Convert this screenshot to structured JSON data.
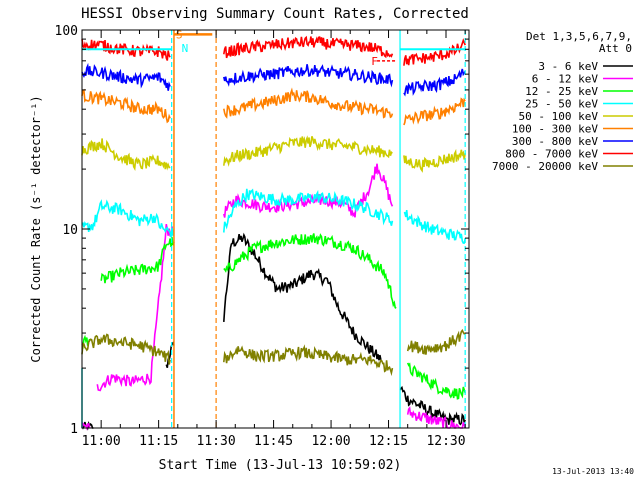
{
  "chart_data": {
    "type": "line",
    "title": "HESSI Observing Summary Count Rates, Corrected",
    "xlabel": "Start Time (13-Jul-13 10:59:02)",
    "ylabel": "Corrected Count Rate (s⁻¹ detector⁻¹)",
    "yscale": "log",
    "ylim": [
      1,
      100
    ],
    "xlim_minutes": [
      -5,
      96
    ],
    "x_ticks": [
      {
        "m": 0,
        "label": "11:00"
      },
      {
        "m": 15,
        "label": "11:15"
      },
      {
        "m": 30,
        "label": "11:30"
      },
      {
        "m": 45,
        "label": "11:45"
      },
      {
        "m": 60,
        "label": "12:00"
      },
      {
        "m": 75,
        "label": "12:15"
      },
      {
        "m": 90,
        "label": "12:30"
      }
    ],
    "y_ticks": [
      {
        "v": 1,
        "label": "1"
      },
      {
        "v": 10,
        "label": "10"
      },
      {
        "v": 100,
        "label": "100"
      }
    ],
    "legend": {
      "position": "right",
      "header": [
        "Det 1,3,5,6,7,9,",
        "Att 0"
      ]
    },
    "series": [
      {
        "name": "3 - 6 keV",
        "color": "#000000",
        "segments": [
          [
            [
              -5,
              1.0
            ],
            [
              -2,
              1.0
            ]
          ],
          [
            [
              17,
              2.0
            ],
            [
              18,
              2.4
            ],
            [
              19,
              2.6
            ]
          ],
          [
            [
              32,
              3.6
            ],
            [
              34,
              8.5
            ],
            [
              37,
              9.0
            ],
            [
              40,
              7.5
            ],
            [
              43,
              6.0
            ],
            [
              46,
              5.0
            ],
            [
              50,
              5.2
            ],
            [
              55,
              6.0
            ],
            [
              59,
              5.5
            ],
            [
              62,
              4.0
            ],
            [
              66,
              3.0
            ],
            [
              70,
              2.5
            ],
            [
              73,
              2.2
            ]
          ],
          [
            [
              78,
              1.6
            ],
            [
              80,
              1.4
            ],
            [
              83,
              1.3
            ],
            [
              86,
              1.2
            ],
            [
              90,
              1.1
            ],
            [
              95,
              1.1
            ]
          ]
        ]
      },
      {
        "name": "6 - 12 keV",
        "color": "#ff00ff",
        "segments": [
          [
            [
              -5,
              1.0
            ],
            [
              -3,
              1.0
            ]
          ],
          [
            [
              -1,
              1.6
            ],
            [
              3,
              1.8
            ],
            [
              8,
              1.7
            ],
            [
              13,
              1.8
            ],
            [
              17,
              10.0
            ],
            [
              19,
              9.5
            ]
          ],
          [
            [
              32,
              12.0
            ],
            [
              35,
              14.0
            ],
            [
              39,
              13.5
            ],
            [
              42,
              13.0
            ],
            [
              46,
              13.0
            ],
            [
              52,
              13.5
            ],
            [
              58,
              14.0
            ],
            [
              63,
              13.5
            ],
            [
              66,
              12.0
            ],
            [
              70,
              16.0
            ],
            [
              72,
              21.0
            ],
            [
              74,
              17.0
            ],
            [
              76,
              13.0
            ]
          ],
          [
            [
              80,
              1.2
            ],
            [
              86,
              1.1
            ],
            [
              90,
              1.05
            ],
            [
              95,
              1.0
            ]
          ]
        ]
      },
      {
        "name": "12 - 25 keV",
        "color": "#00ff00",
        "segments": [
          [
            [
              -5,
              2.7
            ],
            [
              -3,
              2.8
            ]
          ],
          [
            [
              0,
              5.5
            ],
            [
              5,
              6.0
            ],
            [
              10,
              6.2
            ],
            [
              15,
              6.5
            ],
            [
              17,
              8.5
            ],
            [
              19,
              8.6
            ]
          ],
          [
            [
              32,
              6.0
            ],
            [
              36,
              7.0
            ],
            [
              40,
              8.0
            ],
            [
              45,
              8.5
            ],
            [
              50,
              8.8
            ],
            [
              56,
              9.0
            ],
            [
              62,
              8.5
            ],
            [
              66,
              8.0
            ],
            [
              70,
              7.0
            ],
            [
              74,
              6.0
            ],
            [
              77,
              4.0
            ]
          ],
          [
            [
              80,
              2.0
            ],
            [
              84,
              1.8
            ],
            [
              88,
              1.6
            ],
            [
              92,
              1.5
            ],
            [
              95,
              1.5
            ]
          ]
        ]
      },
      {
        "name": "25 - 50 keV",
        "color": "#00ffff",
        "segments": [
          [
            [
              -5,
              10.0
            ],
            [
              -2,
              10.5
            ],
            [
              0,
              13.0
            ],
            [
              5,
              12.5
            ],
            [
              10,
              11.0
            ],
            [
              14,
              11.5
            ],
            [
              16,
              10.0
            ],
            [
              19,
              9.5
            ]
          ],
          [
            [
              32,
              10.0
            ],
            [
              35,
              13.0
            ],
            [
              38,
              15.0
            ],
            [
              42,
              14.5
            ],
            [
              46,
              14.0
            ],
            [
              50,
              14.0
            ],
            [
              56,
              14.5
            ],
            [
              62,
              14.0
            ],
            [
              68,
              13.0
            ],
            [
              72,
              12.0
            ],
            [
              76,
              11.0
            ]
          ],
          [
            [
              79,
              12.0
            ],
            [
              82,
              11.0
            ],
            [
              86,
              10.0
            ],
            [
              90,
              9.5
            ],
            [
              95,
              9.0
            ]
          ]
        ]
      },
      {
        "name": "50 - 100 keV",
        "color": "#cccc00",
        "segments": [
          [
            [
              -5,
              25.0
            ],
            [
              0,
              27.0
            ],
            [
              5,
              23.0
            ],
            [
              10,
              21.0
            ],
            [
              15,
              22.0
            ],
            [
              18,
              20.5
            ]
          ],
          [
            [
              32,
              22.0
            ],
            [
              36,
              23.5
            ],
            [
              40,
              24.0
            ],
            [
              45,
              25.5
            ],
            [
              50,
              27.0
            ],
            [
              55,
              27.5
            ],
            [
              60,
              26.5
            ],
            [
              65,
              26.0
            ],
            [
              70,
              25.0
            ],
            [
              76,
              24.0
            ]
          ],
          [
            [
              79,
              22.0
            ],
            [
              84,
              21.0
            ],
            [
              88,
              22.0
            ],
            [
              92,
              23.0
            ],
            [
              95,
              24.0
            ]
          ]
        ]
      },
      {
        "name": "100 - 300 keV",
        "color": "#ff8000",
        "segments": [
          [
            [
              -5,
              47.0
            ],
            [
              0,
              45.0
            ],
            [
              5,
              43.0
            ],
            [
              10,
              40.0
            ],
            [
              15,
              40.0
            ],
            [
              18,
              36.0
            ]
          ],
          [
            [
              32,
              39.0
            ],
            [
              36,
              40.0
            ],
            [
              40,
              42.0
            ],
            [
              45,
              44.0
            ],
            [
              50,
              47.0
            ],
            [
              55,
              46.0
            ],
            [
              60,
              43.0
            ],
            [
              65,
              41.0
            ],
            [
              70,
              40.0
            ],
            [
              76,
              38.0
            ]
          ],
          [
            [
              79,
              35.0
            ],
            [
              84,
              37.0
            ],
            [
              88,
              38.0
            ],
            [
              92,
              41.0
            ],
            [
              95,
              44.0
            ]
          ]
        ]
      },
      {
        "name": "300 - 800 keV",
        "color": "#0000ff",
        "segments": [
          [
            [
              -5,
              62.0
            ],
            [
              0,
              61.0
            ],
            [
              5,
              58.0
            ],
            [
              10,
              56.0
            ],
            [
              15,
              58.0
            ],
            [
              18,
              52.0
            ]
          ],
          [
            [
              32,
              56.0
            ],
            [
              36,
              58.0
            ],
            [
              40,
              59.0
            ],
            [
              45,
              60.0
            ],
            [
              50,
              62.0
            ],
            [
              55,
              63.0
            ],
            [
              60,
              61.0
            ],
            [
              65,
              60.0
            ],
            [
              70,
              58.0
            ],
            [
              76,
              56.0
            ]
          ],
          [
            [
              79,
              50.0
            ],
            [
              84,
              52.0
            ],
            [
              88,
              53.0
            ],
            [
              92,
              56.0
            ],
            [
              95,
              62.0
            ]
          ]
        ]
      },
      {
        "name": "800 - 7000 keV",
        "color": "#ff0000",
        "segments": [
          [
            [
              -5,
              85.0
            ],
            [
              0,
              84.0
            ],
            [
              5,
              80.0
            ],
            [
              10,
              78.0
            ],
            [
              15,
              78.0
            ],
            [
              18,
              73.0
            ]
          ],
          [
            [
              32,
              77.0
            ],
            [
              36,
              80.0
            ],
            [
              40,
              82.0
            ],
            [
              45,
              84.0
            ],
            [
              50,
              86.0
            ],
            [
              55,
              87.0
            ],
            [
              60,
              85.0
            ],
            [
              65,
              84.0
            ],
            [
              70,
              82.0
            ],
            [
              76,
              76.0
            ]
          ],
          [
            [
              79,
              70.0
            ],
            [
              84,
              72.0
            ],
            [
              88,
              74.0
            ],
            [
              92,
              78.0
            ],
            [
              95,
              84.0
            ]
          ]
        ]
      },
      {
        "name": "7000 - 20000 keV",
        "color": "#808000",
        "segments": [
          [
            [
              -5,
              2.5
            ],
            [
              0,
              2.8
            ],
            [
              5,
              2.7
            ],
            [
              10,
              2.6
            ],
            [
              15,
              2.4
            ],
            [
              18,
              2.2
            ]
          ],
          [
            [
              32,
              2.2
            ],
            [
              36,
              2.5
            ],
            [
              40,
              2.3
            ],
            [
              46,
              2.3
            ],
            [
              52,
              2.4
            ],
            [
              58,
              2.3
            ],
            [
              64,
              2.2
            ],
            [
              70,
              2.2
            ],
            [
              76,
              2.0
            ]
          ],
          [
            [
              80,
              2.6
            ],
            [
              85,
              2.5
            ],
            [
              90,
              2.6
            ],
            [
              95,
              3.0
            ]
          ]
        ]
      }
    ],
    "annotations": [
      {
        "text": "S",
        "m": 19.5,
        "y": 95,
        "color": "#ff8000"
      },
      {
        "text": "N",
        "m": 21.0,
        "y": 81,
        "color": "#00ffff"
      },
      {
        "text": "F",
        "m": 70.5,
        "y": 70,
        "color": "#ff0000"
      }
    ],
    "timestamp": "13-Jul-2013 13:40"
  }
}
